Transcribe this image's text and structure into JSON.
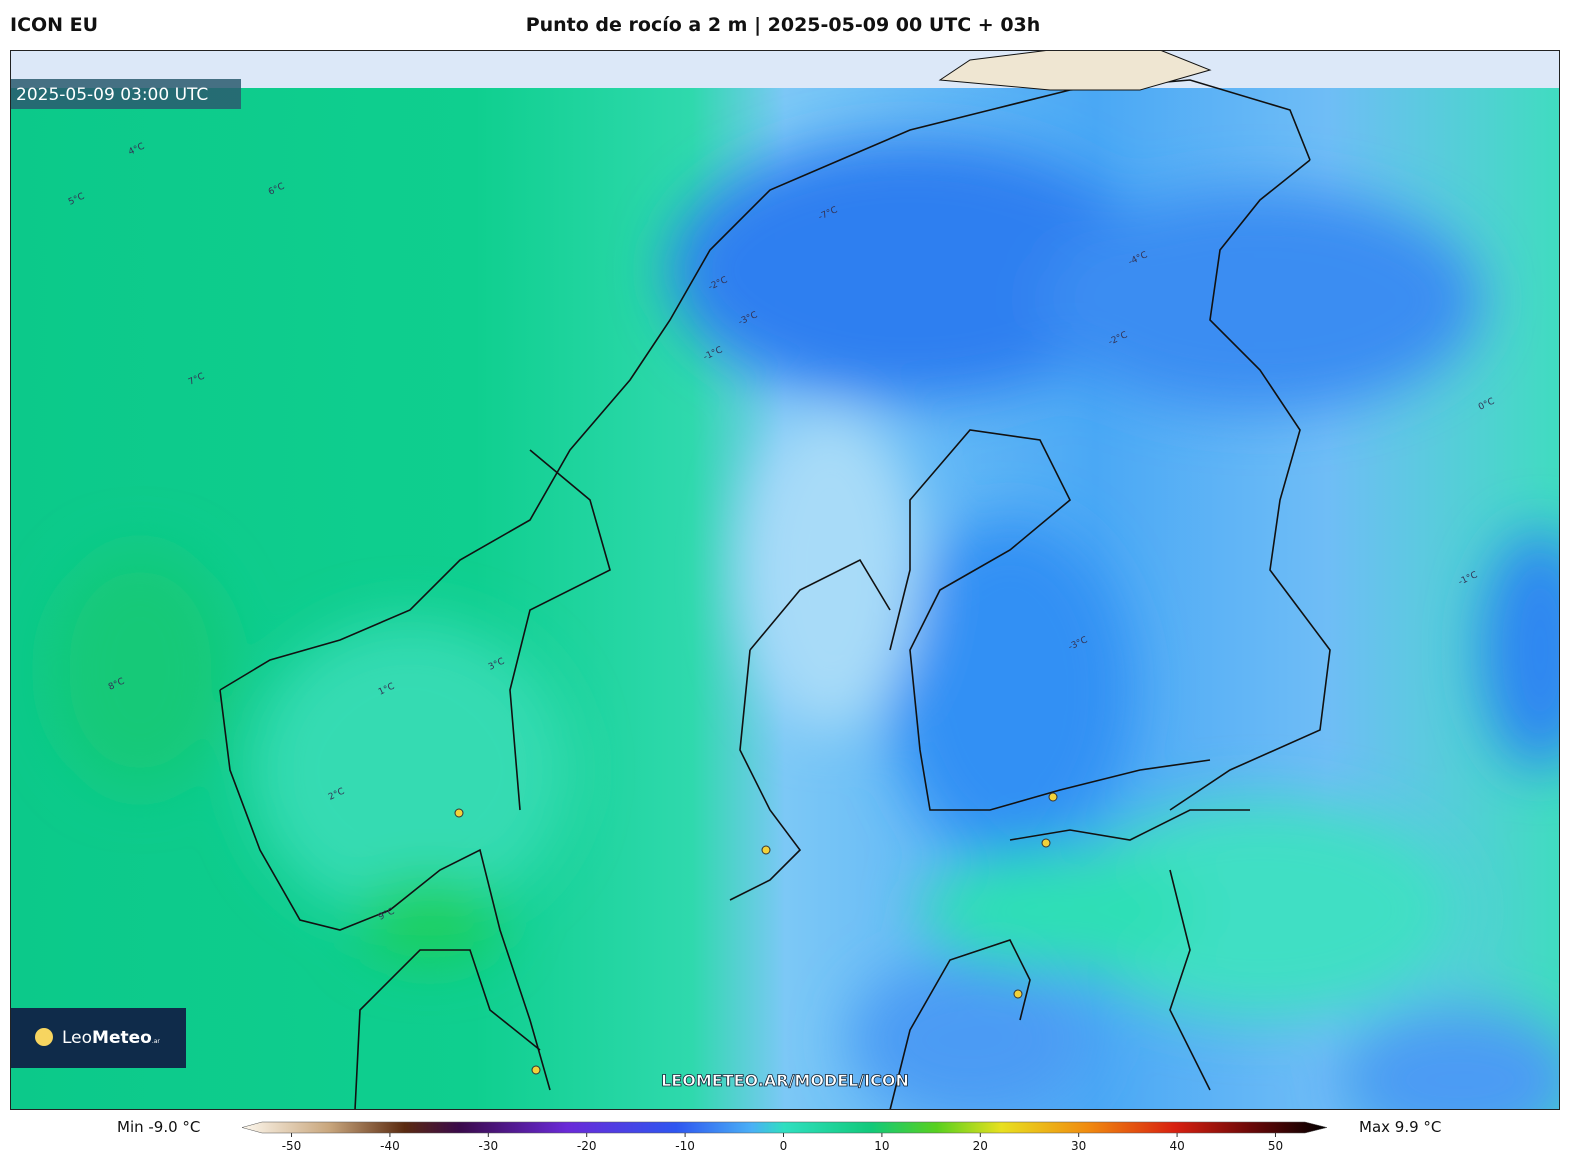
{
  "header": {
    "model": "ICON EU",
    "title": "Punto de rocío a 2 m | 2025-05-09 00 UTC + 03h"
  },
  "map": {
    "timestamp": "2025-05-09 03:00 UTC",
    "watermark": "LEOMETEO.AR/MODEL/ICON",
    "logo": {
      "light": "Leo",
      "bold": "Meteo",
      "suffix": ".ar"
    },
    "contour_labels": [
      "4°C",
      "5°C",
      "6°C",
      "-7°C",
      "-2°C",
      "-3°C",
      "-4°C",
      "7°C",
      "8°C",
      "-1°C",
      "0°C",
      "2°C",
      "3°C",
      "9°C",
      "-2°C",
      "-3°C",
      "1°C",
      "-1°C"
    ]
  },
  "colorbar": {
    "min_label": "Min -9.0 °C",
    "max_label": "Max 9.9 °C",
    "range": [
      -53,
      53
    ],
    "ticks": [
      -50,
      -40,
      -30,
      -20,
      -10,
      0,
      10,
      20,
      30,
      40,
      50
    ]
  }
}
